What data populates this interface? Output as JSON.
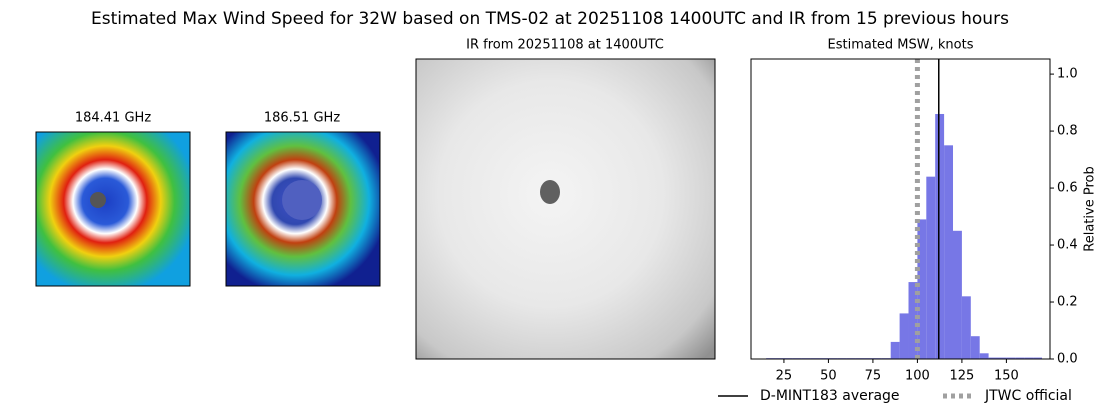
{
  "title": "Estimated Max Wind Speed for 32W based on TMS-02 at 20251108 1400UTC and IR from 15 previous hours",
  "panels": [
    {
      "title": "184.41 GHz"
    },
    {
      "title": "186.51 GHz"
    },
    {
      "title": "IR from 20251108 at 1400UTC"
    }
  ],
  "chart_data": {
    "type": "histogram",
    "title": "Estimated MSW, knots",
    "y_label": "Relative Prob",
    "y_axis_side": "right",
    "bins": [
      15,
      20,
      25,
      30,
      35,
      40,
      45,
      50,
      55,
      60,
      65,
      70,
      75,
      80,
      85,
      90,
      95,
      100,
      105,
      110,
      115,
      120,
      125,
      130,
      135,
      140,
      145,
      150,
      155,
      160,
      165,
      170
    ],
    "values": [
      0.003,
      0.003,
      0.003,
      0.003,
      0.003,
      0.003,
      0.003,
      0.003,
      0.003,
      0.003,
      0.003,
      0.003,
      0.003,
      0.003,
      0.06,
      0.16,
      0.27,
      0.49,
      0.64,
      0.86,
      0.75,
      0.45,
      0.22,
      0.08,
      0.02,
      0.005,
      0.005,
      0.005,
      0.005,
      0.005,
      0.005
    ],
    "color": "#7777e6",
    "xlim": [
      6.5,
      174.5
    ],
    "xticks": [
      25,
      50,
      75,
      100,
      125,
      150
    ],
    "ylim": [
      0,
      1.053
    ],
    "yticks": [
      {
        "value": 0,
        "label": "0.0"
      },
      0.2,
      0.4,
      0.6,
      0.8,
      {
        "value": 1,
        "label": "1.0"
      }
    ],
    "vlines": [
      {
        "name": "D-MINT183 average",
        "x": 112,
        "color": "#000000",
        "style": "solid"
      },
      {
        "name": "JTWC official",
        "x": 100,
        "color": "#a0a0a0",
        "style": "dotted"
      }
    ],
    "legend": "bottom"
  }
}
